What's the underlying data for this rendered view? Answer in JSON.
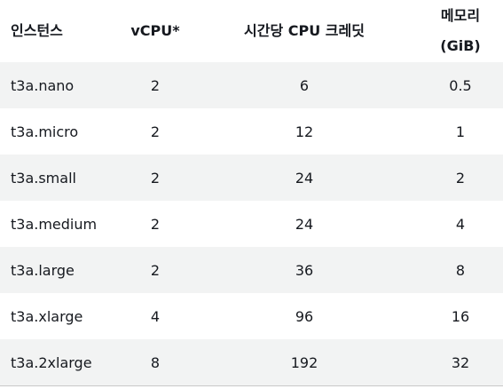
{
  "headers": {
    "instance": "인스턴스",
    "vcpu": "vCPU*",
    "credits": "시간당 CPU 크레딧",
    "memory_line1": "메모리",
    "memory_line2": "(GiB)"
  },
  "rows": [
    {
      "instance": "t3a.nano",
      "vcpu": "2",
      "credits": "6",
      "memory": "0.5"
    },
    {
      "instance": "t3a.micro",
      "vcpu": "2",
      "credits": "12",
      "memory": "1"
    },
    {
      "instance": "t3a.small",
      "vcpu": "2",
      "credits": "24",
      "memory": "2"
    },
    {
      "instance": "t3a.medium",
      "vcpu": "2",
      "credits": "24",
      "memory": "4"
    },
    {
      "instance": "t3a.large",
      "vcpu": "2",
      "credits": "36",
      "memory": "8"
    },
    {
      "instance": "t3a.xlarge",
      "vcpu": "4",
      "credits": "96",
      "memory": "16"
    },
    {
      "instance": "t3a.2xlarge",
      "vcpu": "8",
      "credits": "192",
      "memory": "32"
    }
  ]
}
